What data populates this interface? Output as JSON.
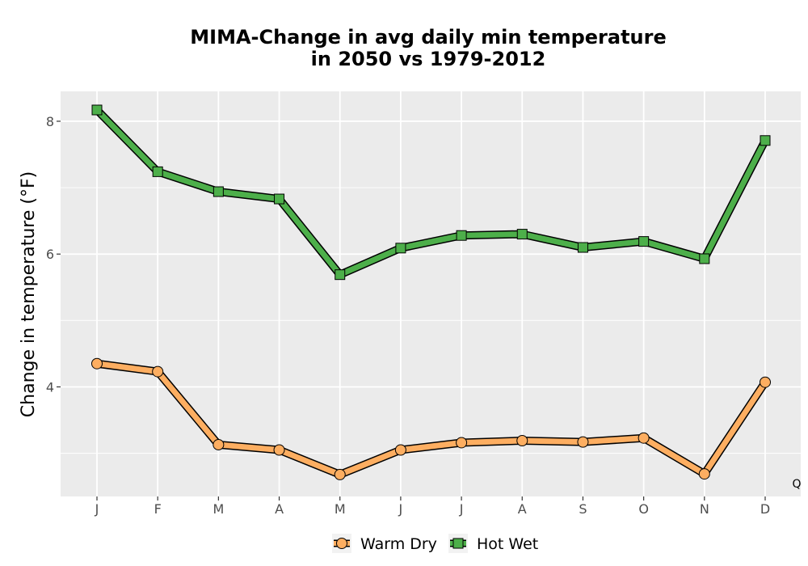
{
  "chart_data": {
    "type": "line",
    "title_line1": "MIMA-Change in avg daily min temperature",
    "title_line2": "in 2050 vs 1979-2012",
    "xlabel": "",
    "ylabel": "Change in temperature (°F)",
    "categories": [
      "J",
      "F",
      "M",
      "A",
      "M",
      "J",
      "J",
      "A",
      "S",
      "O",
      "N",
      "D"
    ],
    "ylim": [
      2.35,
      8.45
    ],
    "yticks": [
      4,
      6,
      8
    ],
    "grid": true,
    "legend_position": "bottom",
    "series": [
      {
        "name": "Warm Dry",
        "marker": "circle",
        "color": "#FDAE61",
        "values": [
          4.35,
          4.23,
          3.13,
          3.05,
          2.68,
          3.05,
          3.16,
          3.19,
          3.17,
          3.23,
          2.69,
          4.07
        ]
      },
      {
        "name": "Hot Wet",
        "marker": "square",
        "color": "#4DAF4A",
        "values": [
          8.17,
          7.24,
          6.94,
          6.83,
          5.69,
          6.09,
          6.28,
          6.3,
          6.1,
          6.19,
          5.93,
          7.71
        ]
      }
    ],
    "corner_note": "Q"
  }
}
